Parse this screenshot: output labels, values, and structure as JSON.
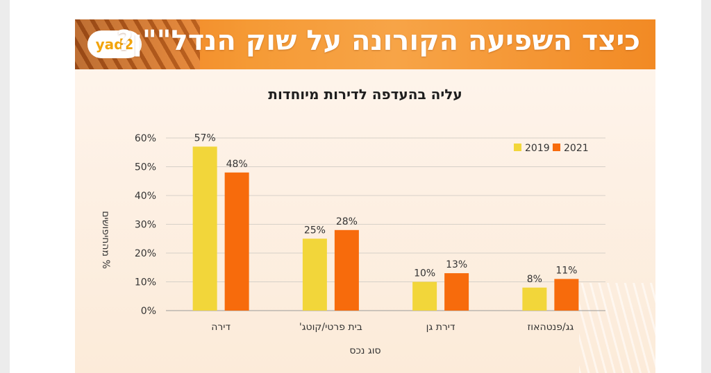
{
  "banner": {
    "title": "כיצד השפיעה הקורונה על שוק הנדל\"\"ן?",
    "logo_text": "yad2"
  },
  "colors": {
    "series_2019": "#f2d63a",
    "series_2021": "#f76b0c",
    "banner_orange": "#f28a24"
  },
  "chart_data": {
    "type": "bar",
    "title": "עליה בהעדפה לדירות מיוחדות",
    "xlabel": "סוג נכס",
    "ylabel": "% מהחיפושים",
    "categories": [
      "דירה",
      "בית פרטי/קוטג'",
      "דירת גן",
      "גג/פנטהאוז"
    ],
    "series": [
      {
        "name": "2019",
        "values": [
          57,
          25,
          10,
          8
        ],
        "labels": [
          "57%",
          "25%",
          "10%",
          "8%"
        ]
      },
      {
        "name": "2021",
        "values": [
          48,
          28,
          13,
          11
        ],
        "labels": [
          "48%",
          "28%",
          "13%",
          "11%"
        ]
      }
    ],
    "ylim": [
      0,
      60
    ],
    "yticks": [
      0,
      10,
      20,
      30,
      40,
      50,
      60
    ],
    "ytick_labels": [
      "0%",
      "10%",
      "20%",
      "30%",
      "40%",
      "50%",
      "60%"
    ],
    "grid": true,
    "legend_position": "top-right"
  }
}
